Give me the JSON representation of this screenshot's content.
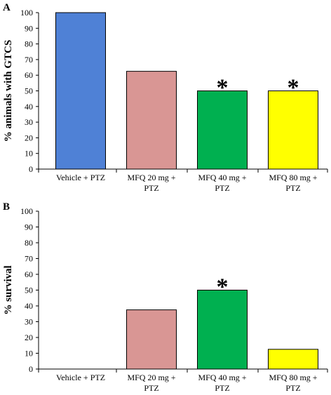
{
  "chart_data": [
    {
      "type": "bar",
      "panel": "A",
      "ylabel": "% animals with GTCS",
      "ylim": [
        0,
        100
      ],
      "yticks": [
        "0",
        "10",
        "20",
        "30",
        "40",
        "50",
        "60",
        "70",
        "80",
        "90",
        "100"
      ],
      "categories": [
        [
          "Vehicle + PTZ"
        ],
        [
          "MFQ 20 mg +",
          "PTZ"
        ],
        [
          "MFQ 40 mg +",
          "PTZ"
        ],
        [
          "MFQ 80 mg +",
          "PTZ"
        ]
      ],
      "values": [
        100,
        62.5,
        50,
        50
      ],
      "significance": [
        "",
        "",
        "*",
        "*"
      ],
      "colors": [
        "#4f81d6",
        "#d99694",
        "#00b050",
        "#ffff00"
      ],
      "grid": false
    },
    {
      "type": "bar",
      "panel": "B",
      "ylabel": "% survival",
      "ylim": [
        0,
        100
      ],
      "yticks": [
        "0",
        "10",
        "20",
        "30",
        "40",
        "50",
        "60",
        "70",
        "80",
        "90",
        "100"
      ],
      "categories": [
        [
          "Vehicle + PTZ"
        ],
        [
          "MFQ 20 mg +",
          "PTZ"
        ],
        [
          "MFQ 40 mg +",
          "PTZ"
        ],
        [
          "MFQ 80 mg +",
          "PTZ"
        ]
      ],
      "values": [
        0,
        37.5,
        50,
        12.5
      ],
      "significance": [
        "",
        "",
        "*",
        ""
      ],
      "colors": [
        "#4f81d6",
        "#d99694",
        "#00b050",
        "#ffff00"
      ],
      "grid": false
    }
  ]
}
